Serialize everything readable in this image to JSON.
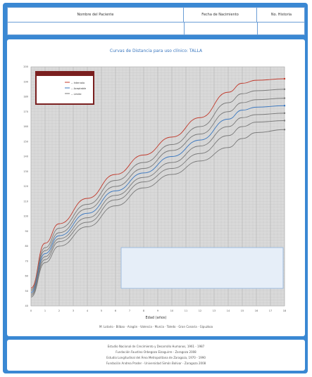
{
  "header": {
    "patient_name_label": "Nombre del Paciente",
    "birth_date_label": "Fecha de Nacimiento",
    "history_label": "No. Historia"
  },
  "chart_data": {
    "type": "line",
    "title": "Curvas de Distancia para uso clínico: TALLA",
    "xlabel": "Edad (años)",
    "xlim": [
      0,
      18
    ],
    "ylim": [
      40,
      200
    ],
    "series": [
      {
        "values": [
          [
            0,
            52
          ],
          [
            1,
            82
          ],
          [
            2,
            95
          ],
          [
            4,
            112
          ],
          [
            6,
            128
          ],
          [
            8,
            141
          ],
          [
            10,
            153
          ],
          [
            12,
            166
          ],
          [
            14,
            183
          ],
          [
            15,
            189
          ],
          [
            16,
            191
          ],
          [
            18,
            192
          ]
        ]
      },
      {
        "values": [
          [
            0,
            51
          ],
          [
            1,
            79
          ],
          [
            2,
            92
          ],
          [
            4,
            108
          ],
          [
            6,
            124
          ],
          [
            8,
            136
          ],
          [
            10,
            148
          ],
          [
            12,
            160
          ],
          [
            14,
            176
          ],
          [
            15,
            182
          ],
          [
            16,
            184
          ],
          [
            18,
            185
          ]
        ]
      },
      {
        "values": [
          [
            0,
            50
          ],
          [
            1,
            77
          ],
          [
            2,
            89
          ],
          [
            4,
            105
          ],
          [
            6,
            120
          ],
          [
            8,
            132
          ],
          [
            10,
            144
          ],
          [
            12,
            155
          ],
          [
            14,
            170
          ],
          [
            15,
            176
          ],
          [
            16,
            178
          ],
          [
            18,
            179
          ]
        ]
      },
      {
        "values": [
          [
            0,
            49
          ],
          [
            1,
            75
          ],
          [
            2,
            87
          ],
          [
            4,
            102
          ],
          [
            6,
            117
          ],
          [
            8,
            129
          ],
          [
            10,
            140
          ],
          [
            12,
            151
          ],
          [
            14,
            165
          ],
          [
            15,
            171
          ],
          [
            16,
            173
          ],
          [
            18,
            174
          ]
        ]
      },
      {
        "values": [
          [
            0,
            48
          ],
          [
            1,
            73
          ],
          [
            2,
            85
          ],
          [
            4,
            99
          ],
          [
            6,
            114
          ],
          [
            8,
            126
          ],
          [
            10,
            136
          ],
          [
            12,
            147
          ],
          [
            14,
            160
          ],
          [
            15,
            166
          ],
          [
            16,
            168
          ],
          [
            18,
            169
          ]
        ]
      },
      {
        "values": [
          [
            0,
            47
          ],
          [
            1,
            71
          ],
          [
            2,
            83
          ],
          [
            4,
            96
          ],
          [
            6,
            111
          ],
          [
            8,
            123
          ],
          [
            10,
            132
          ],
          [
            12,
            142
          ],
          [
            14,
            154
          ],
          [
            15,
            160
          ],
          [
            16,
            163
          ],
          [
            18,
            164
          ]
        ]
      },
      {
        "values": [
          [
            0,
            46
          ],
          [
            1,
            69
          ],
          [
            2,
            80
          ],
          [
            4,
            93
          ],
          [
            6,
            107
          ],
          [
            8,
            119
          ],
          [
            10,
            128
          ],
          [
            12,
            137
          ],
          [
            14,
            146
          ],
          [
            15,
            152
          ],
          [
            16,
            156
          ],
          [
            18,
            158
          ]
        ]
      }
    ],
    "series_colors": [
      "#c0392b",
      "#7a7a7a",
      "#7a7a7a",
      "#3a77bf",
      "#7a7a7a",
      "#7a7a7a",
      "#7a7a7a"
    ],
    "legend_items": [
      "-- Intervalo",
      "-- Aceptable",
      "-- Límite"
    ],
    "bottom_legend": "M: Lotario · Bilbao · Aragón · Valencia · Murcia · Toledo · Gran Canaria · Gipuzkoa",
    "grid": true
  },
  "footer": {
    "line1": "Estudio Nacional de Crecimiento y Desarrollo Humanos, 1961 - 1987",
    "line2": "Fundación Faustino Orbegozo Eizaguirre - Zaragoza 2008",
    "line3": "Estudio Longitudinal del Área Metropolitana de Zaragoza, 1970 - 1990",
    "line4": "Fundación Andrea Prader - Universidad Simón Bolívar - Zaragoza 2008"
  }
}
